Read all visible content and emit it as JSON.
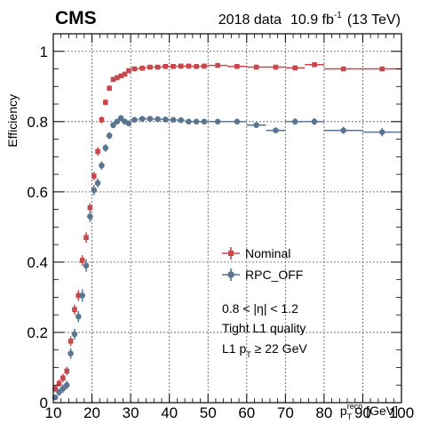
{
  "header": {
    "experiment": "CMS",
    "dataset": "2018 data",
    "lumi_value": "10.9 fb",
    "lumi_exp": "-1",
    "energy": "(13 TeV)"
  },
  "annotations": {
    "eta_range": "0.8 < |η| < 1.2",
    "quality": "Tight L1 quality",
    "pt_cut_prefix": "L1 p",
    "pt_cut_sub": "T",
    "pt_cut_suffix": " ≥ 22 GeV"
  },
  "axes": {
    "ylabel": "Efficiency",
    "xlabel_main": "p",
    "xlabel_sub": "T",
    "xlabel_sup": "reco",
    "xlabel_unit": " [GeV]",
    "x_ticks": [
      "10",
      "20",
      "30",
      "40",
      "50",
      "60",
      "70",
      "80",
      "90",
      "100"
    ],
    "y_ticks": [
      "0",
      "0.2",
      "0.4",
      "0.6",
      "0.8",
      "1"
    ]
  },
  "colors": {
    "nominal": "#c8474a",
    "rpc_off": "#5a7590",
    "grid": "#555555"
  },
  "chart_data": {
    "type": "scatter",
    "xlim": [
      10,
      100
    ],
    "ylim": [
      0,
      1.05
    ],
    "grid": true,
    "legend_placement": "center-right",
    "series": [
      {
        "name": "Nominal",
        "x": [
          10.5,
          11.5,
          12.5,
          13.5,
          14.5,
          15.5,
          16.5,
          17.5,
          18.5,
          19.5,
          20.5,
          21.5,
          22.5,
          23.5,
          24.5,
          25.5,
          26.5,
          27.5,
          28.5,
          29.5,
          31,
          33,
          35,
          37,
          39,
          41,
          43,
          45,
          47,
          49,
          52.5,
          57.5,
          62.5,
          67.5,
          72.5,
          77.5,
          85,
          95
        ],
        "xerr": [
          0.5,
          0.5,
          0.5,
          0.5,
          0.5,
          0.5,
          0.5,
          0.5,
          0.5,
          0.5,
          0.5,
          0.5,
          0.5,
          0.5,
          0.5,
          0.5,
          0.5,
          0.5,
          0.5,
          0.5,
          1,
          1,
          1,
          1,
          1,
          1,
          1,
          1,
          1,
          1,
          2.5,
          2.5,
          2.5,
          2.5,
          2.5,
          2.5,
          5,
          5
        ],
        "y": [
          0.04,
          0.055,
          0.07,
          0.09,
          0.175,
          0.265,
          0.305,
          0.405,
          0.47,
          0.555,
          0.645,
          0.715,
          0.805,
          0.855,
          0.895,
          0.92,
          0.925,
          0.93,
          0.935,
          0.945,
          0.95,
          0.952,
          0.955,
          0.955,
          0.957,
          0.957,
          0.958,
          0.958,
          0.957,
          0.958,
          0.96,
          0.957,
          0.955,
          0.955,
          0.953,
          0.962,
          0.95,
          0.95
        ],
        "yerr": [
          0.01,
          0.01,
          0.012,
          0.012,
          0.014,
          0.014,
          0.015,
          0.015,
          0.015,
          0.013,
          0.012,
          0.012,
          0.01,
          0.009,
          0.008,
          0.007,
          0.007,
          0.006,
          0.006,
          0.005,
          0.005,
          0.005,
          0.004,
          0.004,
          0.004,
          0.004,
          0.004,
          0.004,
          0.004,
          0.004,
          0.004,
          0.004,
          0.005,
          0.005,
          0.005,
          0.006,
          0.005,
          0.006
        ]
      },
      {
        "name": "RPC_OFF",
        "x": [
          10.5,
          11.5,
          12.5,
          13.5,
          14.5,
          15.5,
          16.5,
          17.5,
          18.5,
          19.5,
          20.5,
          21.5,
          22.5,
          23.5,
          24.5,
          25.5,
          26.5,
          27.5,
          28.5,
          29.5,
          31,
          33,
          35,
          37,
          39,
          41,
          43,
          45,
          47,
          49,
          52.5,
          57.5,
          62.5,
          67.5,
          72.5,
          77.5,
          85,
          95
        ],
        "xerr": [
          0.5,
          0.5,
          0.5,
          0.5,
          0.5,
          0.5,
          0.5,
          0.5,
          0.5,
          0.5,
          0.5,
          0.5,
          0.5,
          0.5,
          0.5,
          0.5,
          0.5,
          0.5,
          0.5,
          0.5,
          1,
          1,
          1,
          1,
          1,
          1,
          1,
          1,
          1,
          1,
          2.5,
          2.5,
          2.5,
          2.5,
          2.5,
          2.5,
          5,
          5
        ],
        "y": [
          0.015,
          0.03,
          0.04,
          0.05,
          0.14,
          0.195,
          0.245,
          0.305,
          0.39,
          0.53,
          0.605,
          0.625,
          0.675,
          0.725,
          0.76,
          0.79,
          0.8,
          0.81,
          0.8,
          0.795,
          0.805,
          0.808,
          0.808,
          0.807,
          0.806,
          0.805,
          0.804,
          0.8,
          0.8,
          0.8,
          0.8,
          0.8,
          0.79,
          0.775,
          0.8,
          0.8,
          0.775,
          0.77
        ],
        "yerr": [
          0.008,
          0.01,
          0.012,
          0.012,
          0.015,
          0.015,
          0.016,
          0.018,
          0.018,
          0.016,
          0.015,
          0.013,
          0.012,
          0.011,
          0.01,
          0.009,
          0.008,
          0.008,
          0.007,
          0.007,
          0.006,
          0.006,
          0.006,
          0.006,
          0.006,
          0.006,
          0.006,
          0.006,
          0.006,
          0.006,
          0.006,
          0.006,
          0.007,
          0.008,
          0.009,
          0.01,
          0.01,
          0.012
        ]
      }
    ]
  }
}
